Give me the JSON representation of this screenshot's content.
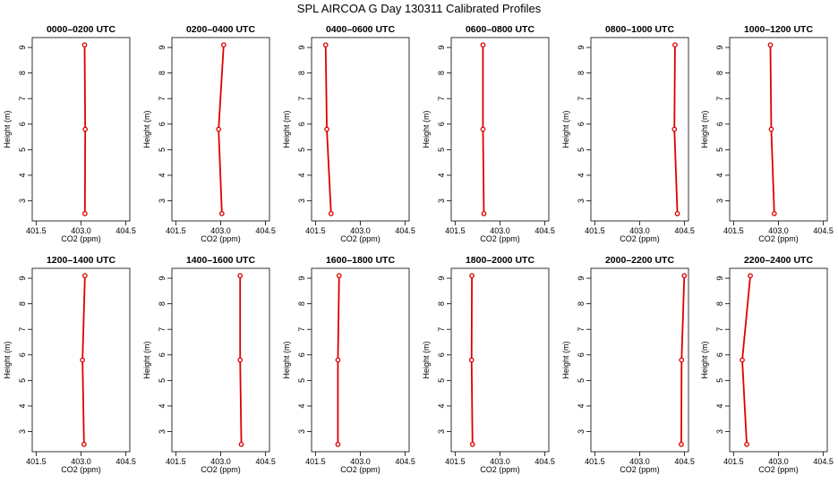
{
  "figure": {
    "title": "SPL AIRCOA G  Day 130311  Calibrated Profiles",
    "series_color": "#dd0000"
  },
  "chart_data": [
    {
      "type": "line",
      "title": "0000–0200 UTC",
      "xlabel": "CO2 (ppm)",
      "ylabel": "Height (m)",
      "xlim": [
        401.5,
        404.5
      ],
      "ylim": [
        2.5,
        9.1
      ],
      "xticks": [
        401.5,
        403.0,
        404.5
      ],
      "xtick_labels": [
        "401.5",
        "403.0",
        "404.5"
      ],
      "yticks": [
        3,
        4,
        5,
        6,
        7,
        8,
        9
      ],
      "ytick_labels": [
        "3",
        "4",
        "5",
        "6",
        "7",
        "8",
        "9"
      ],
      "grid": false,
      "points": [
        {
          "x": 403.12,
          "y": 9.1
        },
        {
          "x": 403.14,
          "y": 5.8
        },
        {
          "x": 403.13,
          "y": 2.5
        }
      ]
    },
    {
      "type": "line",
      "title": "0200–0400 UTC",
      "xlabel": "CO2 (ppm)",
      "ylabel": "Height (m)",
      "xlim": [
        401.5,
        404.5
      ],
      "ylim": [
        2.5,
        9.1
      ],
      "xticks": [
        401.5,
        403.0,
        404.5
      ],
      "xtick_labels": [
        "401.5",
        "403.0",
        "404.5"
      ],
      "yticks": [
        3,
        4,
        5,
        6,
        7,
        8,
        9
      ],
      "ytick_labels": [
        "3",
        "4",
        "5",
        "6",
        "7",
        "8",
        "9"
      ],
      "grid": false,
      "points": [
        {
          "x": 403.1,
          "y": 9.1
        },
        {
          "x": 402.93,
          "y": 5.8
        },
        {
          "x": 403.04,
          "y": 2.5
        }
      ]
    },
    {
      "type": "line",
      "title": "0400–0600 UTC",
      "xlabel": "CO2 (ppm)",
      "ylabel": "Height (m)",
      "xlim": [
        401.5,
        404.5
      ],
      "ylim": [
        2.5,
        9.1
      ],
      "xticks": [
        401.5,
        403.0,
        404.5
      ],
      "xtick_labels": [
        "401.5",
        "403.0",
        "404.5"
      ],
      "yticks": [
        3,
        4,
        5,
        6,
        7,
        8,
        9
      ],
      "ytick_labels": [
        "3",
        "4",
        "5",
        "6",
        "7",
        "8",
        "9"
      ],
      "grid": false,
      "points": [
        {
          "x": 401.84,
          "y": 9.1
        },
        {
          "x": 401.88,
          "y": 5.8
        },
        {
          "x": 402.02,
          "y": 2.5
        }
      ]
    },
    {
      "type": "line",
      "title": "0600–0800 UTC",
      "xlabel": "CO2 (ppm)",
      "ylabel": "Height (m)",
      "xlim": [
        401.5,
        404.5
      ],
      "ylim": [
        2.5,
        9.1
      ],
      "xticks": [
        401.5,
        403.0,
        404.5
      ],
      "xtick_labels": [
        "401.5",
        "403.0",
        "404.5"
      ],
      "yticks": [
        3,
        4,
        5,
        6,
        7,
        8,
        9
      ],
      "ytick_labels": [
        "3",
        "4",
        "5",
        "6",
        "7",
        "8",
        "9"
      ],
      "grid": false,
      "points": [
        {
          "x": 402.43,
          "y": 9.1
        },
        {
          "x": 402.43,
          "y": 5.8
        },
        {
          "x": 402.46,
          "y": 2.5
        }
      ]
    },
    {
      "type": "line",
      "title": "0800–1000 UTC",
      "xlabel": "CO2 (ppm)",
      "ylabel": "Height (m)",
      "xlim": [
        401.5,
        404.5
      ],
      "ylim": [
        2.5,
        9.1
      ],
      "xticks": [
        401.5,
        403.0,
        404.5
      ],
      "xtick_labels": [
        "401.5",
        "403.0",
        "404.5"
      ],
      "yticks": [
        3,
        4,
        5,
        6,
        7,
        8,
        9
      ],
      "ytick_labels": [
        "3",
        "4",
        "5",
        "6",
        "7",
        "8",
        "9"
      ],
      "grid": false,
      "points": [
        {
          "x": 404.18,
          "y": 9.1
        },
        {
          "x": 404.16,
          "y": 5.8
        },
        {
          "x": 404.26,
          "y": 2.5
        }
      ]
    },
    {
      "type": "line",
      "title": "1000–1200 UTC",
      "xlabel": "CO2 (ppm)",
      "ylabel": "Height (m)",
      "xlim": [
        401.5,
        404.5
      ],
      "ylim": [
        2.5,
        9.1
      ],
      "xticks": [
        401.5,
        403.0,
        404.5
      ],
      "xtick_labels": [
        "401.5",
        "403.0",
        "404.5"
      ],
      "yticks": [
        3,
        4,
        5,
        6,
        7,
        8,
        9
      ],
      "ytick_labels": [
        "3",
        "4",
        "5",
        "6",
        "7",
        "8",
        "9"
      ],
      "grid": false,
      "points": [
        {
          "x": 402.73,
          "y": 9.1
        },
        {
          "x": 402.76,
          "y": 5.8
        },
        {
          "x": 402.86,
          "y": 2.5
        }
      ]
    },
    {
      "type": "line",
      "title": "1200–1400 UTC",
      "xlabel": "CO2 (ppm)",
      "ylabel": "Height (m)",
      "xlim": [
        401.5,
        404.5
      ],
      "ylim": [
        2.5,
        9.1
      ],
      "xticks": [
        401.5,
        403.0,
        404.5
      ],
      "xtick_labels": [
        "401.5",
        "403.0",
        "404.5"
      ],
      "yticks": [
        3,
        4,
        5,
        6,
        7,
        8,
        9
      ],
      "ytick_labels": [
        "3",
        "4",
        "5",
        "6",
        "7",
        "8",
        "9"
      ],
      "grid": false,
      "points": [
        {
          "x": 403.13,
          "y": 9.1
        },
        {
          "x": 403.05,
          "y": 5.8
        },
        {
          "x": 403.1,
          "y": 2.5
        }
      ]
    },
    {
      "type": "line",
      "title": "1400–1600 UTC",
      "xlabel": "CO2 (ppm)",
      "ylabel": "Height (m)",
      "xlim": [
        401.5,
        404.5
      ],
      "ylim": [
        2.5,
        9.1
      ],
      "xticks": [
        401.5,
        403.0,
        404.5
      ],
      "xtick_labels": [
        "401.5",
        "403.0",
        "404.5"
      ],
      "yticks": [
        3,
        4,
        5,
        6,
        7,
        8,
        9
      ],
      "ytick_labels": [
        "3",
        "4",
        "5",
        "6",
        "7",
        "8",
        "9"
      ],
      "grid": false,
      "points": [
        {
          "x": 403.65,
          "y": 9.1
        },
        {
          "x": 403.65,
          "y": 5.8
        },
        {
          "x": 403.69,
          "y": 2.5
        }
      ]
    },
    {
      "type": "line",
      "title": "1600–1800 UTC",
      "xlabel": "CO2 (ppm)",
      "ylabel": "Height (m)",
      "xlim": [
        401.5,
        404.5
      ],
      "ylim": [
        2.5,
        9.1
      ],
      "xticks": [
        401.5,
        403.0,
        404.5
      ],
      "xtick_labels": [
        "401.5",
        "403.0",
        "404.5"
      ],
      "yticks": [
        3,
        4,
        5,
        6,
        7,
        8,
        9
      ],
      "ytick_labels": [
        "3",
        "4",
        "5",
        "6",
        "7",
        "8",
        "9"
      ],
      "grid": false,
      "points": [
        {
          "x": 402.29,
          "y": 9.1
        },
        {
          "x": 402.25,
          "y": 5.8
        },
        {
          "x": 402.25,
          "y": 2.5
        }
      ]
    },
    {
      "type": "line",
      "title": "1800–2000 UTC",
      "xlabel": "CO2 (ppm)",
      "ylabel": "Height (m)",
      "xlim": [
        401.5,
        404.5
      ],
      "ylim": [
        2.5,
        9.1
      ],
      "xticks": [
        401.5,
        403.0,
        404.5
      ],
      "xtick_labels": [
        "401.5",
        "403.0",
        "404.5"
      ],
      "yticks": [
        3,
        4,
        5,
        6,
        7,
        8,
        9
      ],
      "ytick_labels": [
        "3",
        "4",
        "5",
        "6",
        "7",
        "8",
        "9"
      ],
      "grid": false,
      "points": [
        {
          "x": 402.06,
          "y": 9.1
        },
        {
          "x": 402.05,
          "y": 5.8
        },
        {
          "x": 402.08,
          "y": 2.5
        }
      ]
    },
    {
      "type": "line",
      "title": "2000–2200 UTC",
      "xlabel": "CO2 (ppm)",
      "ylabel": "Height (m)",
      "xlim": [
        401.5,
        404.5
      ],
      "ylim": [
        2.5,
        9.1
      ],
      "xticks": [
        401.5,
        403.0,
        404.5
      ],
      "xtick_labels": [
        "401.5",
        "403.0",
        "404.5"
      ],
      "yticks": [
        3,
        4,
        5,
        6,
        7,
        8,
        9
      ],
      "ytick_labels": [
        "3",
        "4",
        "5",
        "6",
        "7",
        "8",
        "9"
      ],
      "grid": false,
      "points": [
        {
          "x": 404.49,
          "y": 9.1
        },
        {
          "x": 404.4,
          "y": 5.8
        },
        {
          "x": 404.39,
          "y": 2.5
        }
      ]
    },
    {
      "type": "line",
      "title": "2200–2400 UTC",
      "xlabel": "CO2 (ppm)",
      "ylabel": "Height (m)",
      "xlim": [
        401.5,
        404.5
      ],
      "ylim": [
        2.5,
        9.1
      ],
      "xticks": [
        401.5,
        403.0,
        404.5
      ],
      "xtick_labels": [
        "401.5",
        "403.0",
        "404.5"
      ],
      "yticks": [
        3,
        4,
        5,
        6,
        7,
        8,
        9
      ],
      "ytick_labels": [
        "3",
        "4",
        "5",
        "6",
        "7",
        "8",
        "9"
      ],
      "grid": false,
      "points": [
        {
          "x": 402.06,
          "y": 9.1
        },
        {
          "x": 401.79,
          "y": 5.8
        },
        {
          "x": 401.94,
          "y": 2.5
        }
      ]
    }
  ]
}
